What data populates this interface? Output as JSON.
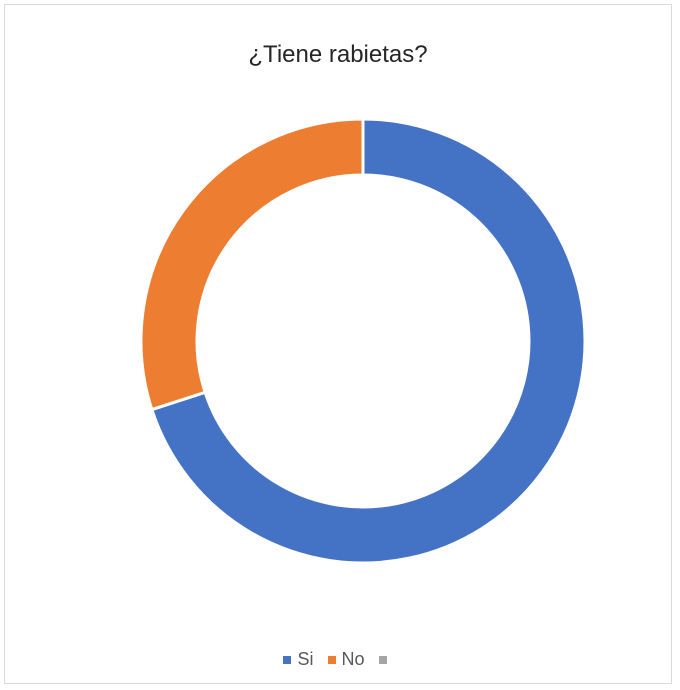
{
  "chart_data": {
    "type": "pie",
    "variant": "doughnut",
    "title": "¿Tiene rabietas?",
    "categories": [
      "Si",
      "No",
      ""
    ],
    "values": [
      70,
      30,
      0
    ],
    "colors": [
      "#4472C4",
      "#ED7D31",
      "#A5A5A5"
    ],
    "legend_position": "bottom",
    "start_angle_deg": 0,
    "direction": "clockwise"
  }
}
